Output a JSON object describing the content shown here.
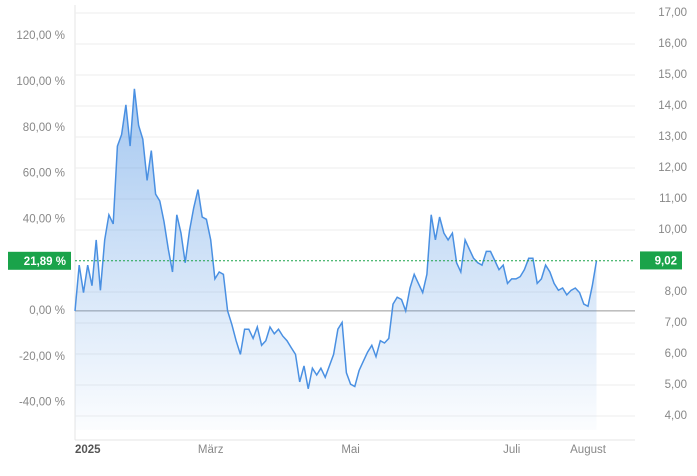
{
  "chart_data": {
    "type": "line",
    "categories": [
      "2025",
      null,
      null,
      null,
      null,
      null,
      null,
      null,
      null,
      null,
      null,
      null,
      null,
      null,
      null,
      null,
      null,
      null,
      null,
      null,
      null,
      null,
      null,
      null,
      null,
      null,
      null,
      null,
      null,
      null,
      null,
      null,
      "März",
      null,
      null,
      null,
      null,
      null,
      null,
      null,
      null,
      null,
      null,
      null,
      null,
      null,
      null,
      null,
      null,
      null,
      null,
      null,
      null,
      null,
      null,
      null,
      null,
      null,
      null,
      null,
      null,
      null,
      null,
      null,
      null,
      "Mai",
      null,
      null,
      null,
      null,
      null,
      null,
      null,
      null,
      null,
      null,
      null,
      null,
      null,
      null,
      null,
      null,
      null,
      null,
      null,
      null,
      null,
      null,
      null,
      null,
      null,
      null,
      null,
      null,
      null,
      null,
      null,
      null,
      null,
      null,
      null,
      null,
      null,
      "Juli",
      null,
      null,
      null,
      null,
      null,
      null,
      null,
      null,
      null,
      null,
      null,
      null,
      null,
      null,
      null,
      null,
      null,
      "August",
      null,
      null
    ],
    "series": [
      {
        "color": "#4a90e2",
        "values": [
          0,
          20,
          8,
          20,
          11,
          31,
          9,
          31,
          42,
          38,
          72,
          77,
          90,
          72,
          97,
          81,
          75,
          57,
          70,
          51,
          48,
          39,
          27,
          17,
          42,
          34,
          21,
          35,
          45,
          53,
          41,
          40,
          31,
          14,
          17,
          16,
          0,
          -6,
          -13,
          -19,
          -8,
          -8,
          -12,
          -7,
          -15,
          -13,
          -7,
          -10,
          -8,
          -11,
          -13,
          -16,
          -19,
          -31,
          -24,
          -34,
          -25,
          -28,
          -25,
          -29,
          -24,
          -19,
          -8,
          -5,
          -27,
          -32,
          -33,
          -26,
          -22,
          -18,
          -15,
          -20,
          -13,
          -14,
          -12,
          3,
          6,
          5,
          0,
          10,
          16,
          12,
          8,
          16,
          42,
          31,
          41,
          34,
          31,
          34,
          21,
          17,
          31,
          27,
          23,
          21,
          20,
          26,
          26,
          22,
          18,
          20,
          12,
          14,
          14,
          15,
          18,
          23,
          23,
          12,
          14,
          20,
          17,
          12,
          9,
          10,
          7,
          9,
          10,
          8,
          3,
          2,
          11,
          21.89
        ]
      }
    ],
    "ylim": [
      -52,
      133.6
    ],
    "yticks": [
      {
        "value": 120,
        "label": "120,00 %"
      },
      {
        "value": 100,
        "label": "100,00 %"
      },
      {
        "value": 80,
        "label": "80,00 %"
      },
      {
        "value": 60,
        "label": "60,00 %"
      },
      {
        "value": 40,
        "label": "40,00 %"
      },
      {
        "value": 0,
        "label": "0,00 %"
      },
      {
        "value": -20,
        "label": "-20,00 %"
      },
      {
        "value": -40,
        "label": "-40,00 %"
      }
    ],
    "y2lim": [
      3.55,
      17.26
    ],
    "y2ticks": [
      {
        "value": 17,
        "label": "17,00"
      },
      {
        "value": 16,
        "label": "16,00"
      },
      {
        "value": 15,
        "label": "15,00"
      },
      {
        "value": 14,
        "label": "14,00"
      },
      {
        "value": 13,
        "label": "13,00"
      },
      {
        "value": 12,
        "label": "12,00"
      },
      {
        "value": 11,
        "label": "11,00"
      },
      {
        "value": 10,
        "label": "10,00"
      },
      {
        "value": 8,
        "label": "8,00"
      },
      {
        "value": 7,
        "label": "7,00"
      },
      {
        "value": 6,
        "label": "6,00"
      },
      {
        "value": 5,
        "label": "5,00"
      },
      {
        "value": 4,
        "label": "4,00"
      }
    ],
    "grid": true,
    "annotations": [
      {
        "value": 21.89,
        "label": "21,89 %",
        "axis": "y"
      },
      {
        "value": 9.02,
        "label": "9,02",
        "axis": "y2"
      }
    ]
  }
}
